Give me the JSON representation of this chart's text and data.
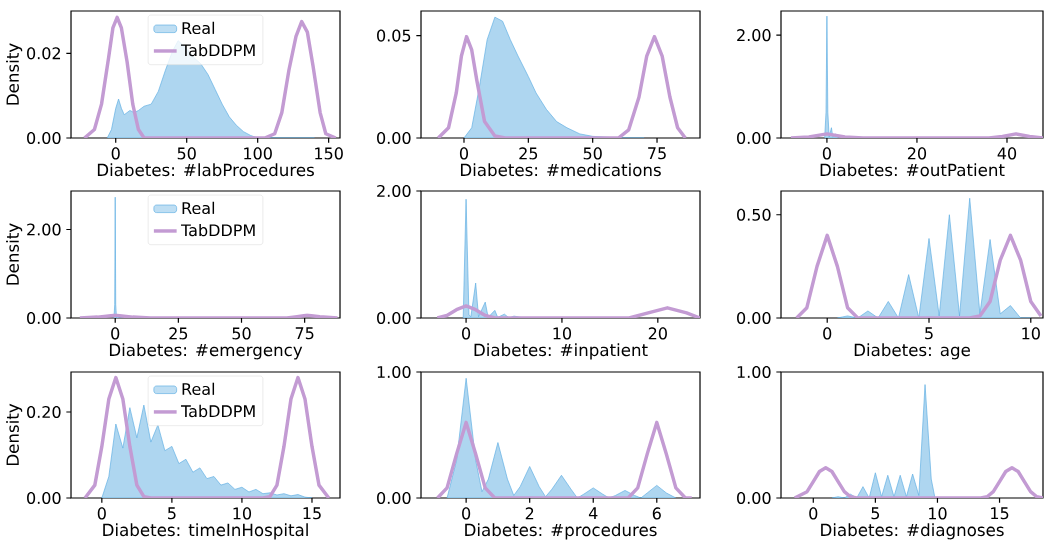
{
  "chart_data": [
    {
      "type": "area",
      "xlabel": "Diabetes: #labProcedures",
      "ylabel": "Density",
      "xlim": [
        -31.5,
        158
      ],
      "ylim": [
        0,
        0.03
      ],
      "xticks": [
        0,
        50,
        100,
        150
      ],
      "yticks": [
        {
          "value": 0,
          "label": "0.00"
        },
        0.02
      ],
      "legend": "top",
      "series": [
        {
          "name": "Real",
          "color": "#5dade2",
          "x": [
            -6,
            -3,
            0,
            2,
            4,
            6,
            8,
            10,
            13,
            16,
            20,
            25,
            30,
            35,
            40,
            44,
            50,
            55,
            60,
            65,
            70,
            75,
            80,
            85,
            90,
            95,
            100,
            110,
            130,
            140
          ],
          "values": [
            0,
            0.002,
            0.007,
            0.0092,
            0.007,
            0.0055,
            0.006,
            0.0065,
            0.006,
            0.0065,
            0.0075,
            0.008,
            0.011,
            0.016,
            0.0205,
            0.023,
            0.021,
            0.019,
            0.0175,
            0.015,
            0.0115,
            0.008,
            0.005,
            0.003,
            0.0015,
            0.0006,
            0,
            0,
            0,
            0
          ]
        },
        {
          "name": "TabDDPM",
          "type": "line",
          "color": "#c39bd3",
          "x": [
            -22,
            -15,
            -10,
            -5,
            -2,
            1,
            4,
            8,
            12,
            16,
            20,
            25,
            105,
            112,
            117,
            122,
            127,
            131,
            135,
            139,
            144,
            148,
            155
          ],
          "values": [
            0,
            0.002,
            0.008,
            0.019,
            0.026,
            0.0285,
            0.026,
            0.018,
            0.008,
            0.002,
            0,
            0,
            0,
            0.001,
            0.006,
            0.016,
            0.024,
            0.0275,
            0.025,
            0.017,
            0.006,
            0.001,
            0
          ]
        }
      ]
    },
    {
      "type": "area",
      "xlabel": "Diabetes: #medications",
      "xlim": [
        -16.7,
        91.7
      ],
      "ylim": [
        0,
        0.062
      ],
      "xticks": [
        0,
        25,
        50,
        75
      ],
      "yticks": [
        {
          "value": 0,
          "label": "0.00"
        },
        0.05
      ],
      "series": [
        {
          "color": "#5dade2",
          "x": [
            0,
            3,
            6,
            9,
            12,
            15,
            18,
            21,
            25,
            28,
            32,
            36,
            40,
            45,
            50,
            60,
            70
          ],
          "values": [
            0,
            0.005,
            0.025,
            0.048,
            0.059,
            0.057,
            0.048,
            0.04,
            0.03,
            0.022,
            0.014,
            0.008,
            0.005,
            0.002,
            0.0008,
            0,
            0
          ]
        },
        {
          "type": "line",
          "color": "#c39bd3",
          "x": [
            -10,
            -6,
            -3,
            -1,
            1,
            3,
            5,
            8,
            12,
            16,
            60,
            64,
            68,
            71,
            74,
            77,
            80,
            83,
            86
          ],
          "values": [
            0,
            0.005,
            0.022,
            0.04,
            0.0495,
            0.043,
            0.028,
            0.008,
            0.001,
            0,
            0,
            0.004,
            0.02,
            0.04,
            0.0495,
            0.04,
            0.02,
            0.005,
            0
          ]
        }
      ]
    },
    {
      "type": "area",
      "xlabel": "Diabetes: #outPatient",
      "xlim": [
        -10.2,
        48
      ],
      "ylim": [
        0,
        2.47
      ],
      "xticks": [
        0,
        20,
        40
      ],
      "yticks": [
        {
          "value": 0,
          "label": "0.00"
        },
        {
          "value": 2,
          "label": "2.00"
        }
      ],
      "series": [
        {
          "color": "#5dade2",
          "x": [
            -0.5,
            -0.2,
            0,
            0.2,
            0.5,
            1,
            1.3,
            2,
            2.5,
            5
          ],
          "values": [
            0,
            0.5,
            2.37,
            0.5,
            0.02,
            0.2,
            0.02,
            0.08,
            0,
            0
          ]
        },
        {
          "type": "line",
          "color": "#c39bd3",
          "x": [
            -8,
            -4,
            0,
            4,
            8,
            36,
            39,
            42,
            45,
            48
          ],
          "values": [
            0,
            0.02,
            0.08,
            0.02,
            0,
            0,
            0.03,
            0.08,
            0.03,
            0
          ]
        }
      ]
    },
    {
      "type": "area",
      "xlabel": "Diabetes: #emergency",
      "ylabel": "Density",
      "xlim": [
        -17.5,
        89
      ],
      "ylim": [
        0,
        2.87
      ],
      "xticks": [
        0,
        25,
        50,
        75
      ],
      "yticks": [
        {
          "value": 0,
          "label": "0.00"
        },
        {
          "value": 2,
          "label": "2.00"
        }
      ],
      "legend": "top",
      "series": [
        {
          "name": "Real",
          "color": "#5dade2",
          "x": [
            -0.5,
            -0.2,
            0,
            0.2,
            0.5,
            1,
            1.5,
            3
          ],
          "values": [
            0,
            0.3,
            2.73,
            0.3,
            0,
            0.05,
            0,
            0
          ]
        },
        {
          "name": "TabDDPM",
          "type": "line",
          "color": "#c39bd3",
          "x": [
            -14,
            -7,
            0,
            7,
            14,
            68,
            72,
            76,
            81,
            88
          ],
          "values": [
            0,
            0.02,
            0.06,
            0.02,
            0,
            0,
            0.03,
            0.06,
            0.03,
            0
          ]
        }
      ]
    },
    {
      "type": "area",
      "xlabel": "Diabetes: #inpatient",
      "xlim": [
        -4.7,
        24.4
      ],
      "ylim": [
        0,
        2
      ],
      "xticks": [
        0,
        10,
        20
      ],
      "yticks": [
        {
          "value": 0,
          "label": "0.00"
        },
        {
          "value": 2,
          "label": "2.00"
        }
      ],
      "series": [
        {
          "color": "#5dade2",
          "x": [
            -0.3,
            0,
            0.3,
            0.5,
            1,
            1.3,
            2,
            2.3,
            3,
            3.3,
            4,
            4.5,
            5,
            6
          ],
          "values": [
            0,
            1.87,
            0.05,
            0.02,
            0.55,
            0.02,
            0.25,
            0.01,
            0.12,
            0.01,
            0.06,
            0,
            0.03,
            0
          ]
        },
        {
          "type": "line",
          "color": "#c39bd3",
          "x": [
            -3,
            -2,
            -1,
            0,
            1,
            2,
            3,
            4,
            17,
            19,
            21,
            23,
            24.4
          ],
          "values": [
            0,
            0.04,
            0.13,
            0.19,
            0.13,
            0.04,
            0,
            0,
            0,
            0.08,
            0.16,
            0.08,
            0
          ]
        }
      ]
    },
    {
      "type": "area",
      "xlabel": "Diabetes: age",
      "xlim": [
        -2.27,
        10.6
      ],
      "ylim": [
        0,
        0.615
      ],
      "xticks": [
        0,
        5,
        10
      ],
      "yticks": [
        {
          "value": 0,
          "label": "0.00"
        },
        {
          "value": 0.5,
          "label": "0.50"
        }
      ],
      "series": [
        {
          "color": "#5dade2",
          "x": [
            0.5,
            1,
            1.5,
            2,
            2.5,
            3,
            3.5,
            4,
            4.5,
            5,
            5.5,
            6,
            6.5,
            7,
            7.5,
            8,
            8.5,
            9,
            9.5,
            10
          ],
          "values": [
            0,
            0.01,
            0,
            0.034,
            0,
            0.08,
            0,
            0.21,
            0,
            0.385,
            0.01,
            0.5,
            0.01,
            0.58,
            0.02,
            0.38,
            0.02,
            0.06,
            0,
            0
          ]
        },
        {
          "type": "line",
          "color": "#c39bd3",
          "x": [
            -1.5,
            -1,
            -0.5,
            0,
            0.5,
            1,
            1.5,
            2,
            7,
            7.5,
            8,
            8.5,
            9,
            9.5,
            10,
            10.5
          ],
          "values": [
            0,
            0.05,
            0.25,
            0.4,
            0.25,
            0.05,
            0,
            0,
            0,
            0.01,
            0.08,
            0.28,
            0.4,
            0.28,
            0.08,
            0.01
          ]
        }
      ]
    },
    {
      "type": "area",
      "xlabel": "Diabetes: timeInHospital",
      "ylabel": "Density",
      "xlim": [
        -2.2,
        17
      ],
      "ylim": [
        0,
        0.293
      ],
      "xticks": [
        0,
        5,
        10,
        15
      ],
      "yticks": [
        {
          "value": 0,
          "label": "0.00"
        },
        {
          "value": 0.2,
          "label": "0.20"
        }
      ],
      "legend": "top",
      "series": [
        {
          "name": "Real",
          "color": "#5dade2",
          "x": [
            0,
            0.5,
            1,
            1.5,
            2,
            2.5,
            3,
            3.5,
            4,
            4.5,
            5,
            5.5,
            6,
            6.5,
            7,
            7.5,
            8,
            8.5,
            9,
            9.5,
            10,
            10.5,
            11,
            11.5,
            12,
            12.5,
            13,
            13.5,
            14,
            14.5,
            15
          ],
          "values": [
            0,
            0.05,
            0.172,
            0.116,
            0.21,
            0.14,
            0.216,
            0.13,
            0.17,
            0.11,
            0.12,
            0.08,
            0.09,
            0.06,
            0.07,
            0.045,
            0.05,
            0.03,
            0.035,
            0.02,
            0.025,
            0.014,
            0.02,
            0.01,
            0.012,
            0.007,
            0.01,
            0.005,
            0.008,
            0.002,
            0
          ]
        },
        {
          "name": "TabDDPM",
          "type": "line",
          "color": "#c39bd3",
          "x": [
            -1.2,
            -0.5,
            0,
            0.5,
            1,
            1.5,
            2,
            2.5,
            3,
            3.5,
            11.5,
            12,
            12.5,
            13,
            13.5,
            14,
            14.5,
            15,
            15.5,
            16.2
          ],
          "values": [
            0,
            0.03,
            0.12,
            0.23,
            0.28,
            0.23,
            0.12,
            0.03,
            0.003,
            0,
            0,
            0.003,
            0.03,
            0.12,
            0.23,
            0.28,
            0.23,
            0.12,
            0.03,
            0
          ]
        }
      ]
    },
    {
      "type": "area",
      "xlabel": "Diabetes: #procedures",
      "xlim": [
        -1.42,
        7.36
      ],
      "ylim": [
        0,
        1
      ],
      "xticks": [
        0,
        2,
        4,
        6
      ],
      "yticks": [
        {
          "value": 0,
          "label": "0.00"
        },
        {
          "value": 1,
          "label": "1.00"
        }
      ],
      "series": [
        {
          "color": "#5dade2",
          "x": [
            -0.6,
            -0.3,
            0,
            0.3,
            0.5,
            0.7,
            1,
            1.3,
            1.5,
            1.7,
            2,
            2.3,
            2.5,
            2.7,
            3,
            3.3,
            3.5,
            3.7,
            4,
            4.3,
            4.5,
            4.7,
            5,
            5.3,
            5.5,
            5.7,
            6,
            6.3,
            6.6
          ],
          "values": [
            0,
            0.3,
            0.95,
            0.3,
            0.05,
            0.15,
            0.44,
            0.15,
            0.02,
            0.09,
            0.25,
            0.09,
            0.01,
            0.07,
            0.18,
            0.07,
            0,
            0.03,
            0.08,
            0.03,
            0,
            0.02,
            0.06,
            0.02,
            0,
            0.04,
            0.1,
            0.04,
            0
          ]
        },
        {
          "type": "line",
          "color": "#c39bd3",
          "x": [
            -0.9,
            -0.6,
            -0.3,
            0,
            0.3,
            0.6,
            0.9,
            1.2,
            4.8,
            5.1,
            5.4,
            5.7,
            6,
            6.3,
            6.6,
            6.9,
            7.1
          ],
          "values": [
            0,
            0.08,
            0.35,
            0.6,
            0.35,
            0.08,
            0,
            0,
            0,
            0,
            0.08,
            0.35,
            0.6,
            0.35,
            0.08,
            0,
            0
          ]
        }
      ]
    },
    {
      "type": "area",
      "xlabel": "Diabetes: #diagnoses",
      "xlim": [
        -2.6,
        18.5
      ],
      "ylim": [
        0,
        1
      ],
      "xticks": [
        0,
        5,
        10,
        15
      ],
      "yticks": [
        {
          "value": 0,
          "label": "0.00"
        },
        {
          "value": 1,
          "label": "1.00"
        }
      ],
      "series": [
        {
          "color": "#5dade2",
          "x": [
            1.5,
            2,
            2.5,
            3,
            3.5,
            4,
            4.5,
            5,
            5.5,
            6,
            6.5,
            7,
            7.5,
            8,
            8.5,
            9,
            9.5,
            9.8,
            12
          ],
          "values": [
            0,
            0.01,
            0,
            0.03,
            0,
            0.09,
            0,
            0.2,
            0.01,
            0.18,
            0.01,
            0.18,
            0.01,
            0.19,
            0.02,
            0.9,
            0.15,
            0,
            0
          ]
        },
        {
          "type": "line",
          "color": "#c39bd3",
          "x": [
            -1.5,
            -0.5,
            0,
            0.5,
            1,
            1.5,
            2,
            2.5,
            3,
            3.5,
            13.5,
            14,
            14.5,
            15,
            15.5,
            16,
            16.5,
            17,
            17.5,
            18,
            18.5
          ],
          "values": [
            0,
            0.05,
            0.13,
            0.21,
            0.24,
            0.21,
            0.13,
            0.05,
            0.01,
            0,
            0,
            0.01,
            0.05,
            0.13,
            0.21,
            0.24,
            0.21,
            0.13,
            0.05,
            0.01,
            0
          ]
        }
      ]
    }
  ]
}
